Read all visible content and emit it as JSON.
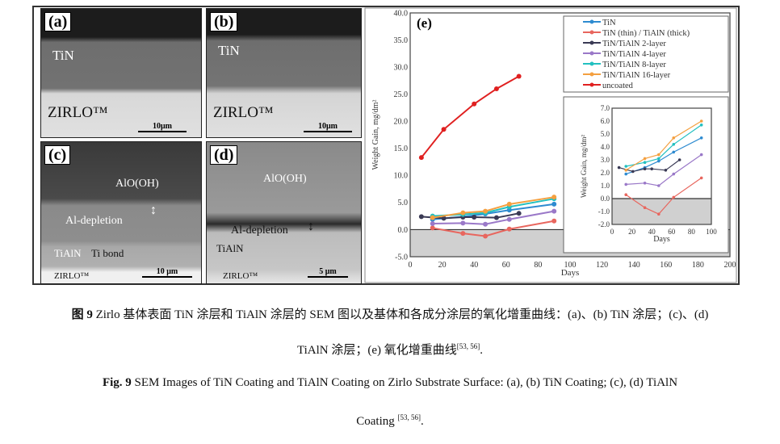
{
  "panels": {
    "a": {
      "label": "(a)",
      "top": "TiN",
      "bottom": "ZIRLO™",
      "scale": "10μm"
    },
    "b": {
      "label": "(b)",
      "top": "TiN",
      "bottom": "ZIRLO™",
      "scale": "10μm"
    },
    "c": {
      "label": "(c)",
      "oxide": "AlO(OH)",
      "depletion": "Al-depletion",
      "coating": "TiAlN",
      "bond": "Ti bond",
      "substrate": "ZIRLO™",
      "scale": "10 μm"
    },
    "d": {
      "label": "(d)",
      "oxide": "AlO(OH)",
      "depletion": "Al-depletion",
      "coating": "TiAlN",
      "substrate": "ZIRLO™",
      "scale": "5 μm"
    }
  },
  "chart_data": [
    {
      "type": "line",
      "panel_label": "(e)",
      "xlabel": "Days",
      "ylabel": "Weight Gain, mg/dm²",
      "xlim": [
        0,
        200
      ],
      "ylim": [
        -5,
        40
      ],
      "xticks": [
        "0",
        "20",
        "40",
        "60",
        "80",
        "100",
        "120",
        "140",
        "160",
        "180",
        "200"
      ],
      "yticks": [
        "-5.0",
        "0.0",
        "5.0",
        "10.0",
        "15.0",
        "20.0",
        "25.0",
        "30.0",
        "35.0",
        "40.0"
      ],
      "legend": "top-right",
      "series": [
        {
          "name": "TiN",
          "color": "#2e8bd0",
          "x": [
            14,
            33,
            47,
            62,
            90
          ],
          "y": [
            1.9,
            2.4,
            2.9,
            3.6,
            4.7
          ]
        },
        {
          "name": "TiN (thin) / TiAlN (thick)",
          "color": "#e8665e",
          "x": [
            14,
            33,
            47,
            62,
            90
          ],
          "y": [
            0.3,
            -0.7,
            -1.2,
            0.1,
            1.6
          ]
        },
        {
          "name": "TiN/TiAlN 2-layer",
          "color": "#3a3a55",
          "x": [
            7,
            21,
            33,
            40,
            54,
            68
          ],
          "y": [
            2.4,
            2.1,
            2.3,
            2.3,
            2.2,
            3.0
          ]
        },
        {
          "name": "TiN/TiAlN 4-layer",
          "color": "#9a78c8",
          "x": [
            14,
            33,
            47,
            62,
            90
          ],
          "y": [
            1.1,
            1.2,
            1.0,
            1.9,
            3.4
          ]
        },
        {
          "name": "TiN/TiAlN 8-layer",
          "color": "#22c0c0",
          "x": [
            14,
            33,
            47,
            62,
            90
          ],
          "y": [
            2.5,
            2.8,
            3.1,
            4.2,
            5.7
          ]
        },
        {
          "name": "TiN/TiAlN 16-layer",
          "color": "#f4a040",
          "x": [
            14,
            33,
            47,
            62,
            90
          ],
          "y": [
            2.2,
            3.1,
            3.4,
            4.7,
            6.0
          ]
        },
        {
          "name": "uncoated",
          "color": "#e02020",
          "x": [
            7,
            21,
            40,
            54,
            68
          ],
          "y": [
            13.3,
            18.5,
            23.2,
            26.0,
            28.3
          ]
        }
      ]
    },
    {
      "type": "line",
      "inset": true,
      "xlabel": "Days",
      "ylabel": "Weight Gain, mg/dm²",
      "xlim": [
        0,
        100
      ],
      "ylim": [
        -2,
        7
      ],
      "xticks": [
        "0",
        "20",
        "40",
        "60",
        "80",
        "100"
      ],
      "yticks": [
        "-2.0",
        "-1.0",
        "0.0",
        "1.0",
        "2.0",
        "3.0",
        "4.0",
        "5.0",
        "6.0",
        "7.0"
      ],
      "series_ref": "same as main excluding uncoated"
    }
  ],
  "caption": {
    "cn_label": "图 9",
    "cn_line1": " Zirlo 基体表面 TiN 涂层和 TiAlN 涂层的 SEM 图以及基体和各成分涂层的氧化增重曲线：(a)、(b) TiN 涂层；(c)、(d)",
    "cn_line2": "TiAlN 涂层；(e) 氧化增重曲线",
    "cn_ref": "[53, 56]",
    "cn_end": ".",
    "en_label": "Fig. 9",
    "en_line1": " SEM Images of TiN Coating and TiAlN Coating on Zirlo Substrate Surface: (a), (b) TiN Coating; (c), (d) TiAlN",
    "en_line2": "Coating ",
    "en_ref": "[53, 56]",
    "en_end": "."
  }
}
